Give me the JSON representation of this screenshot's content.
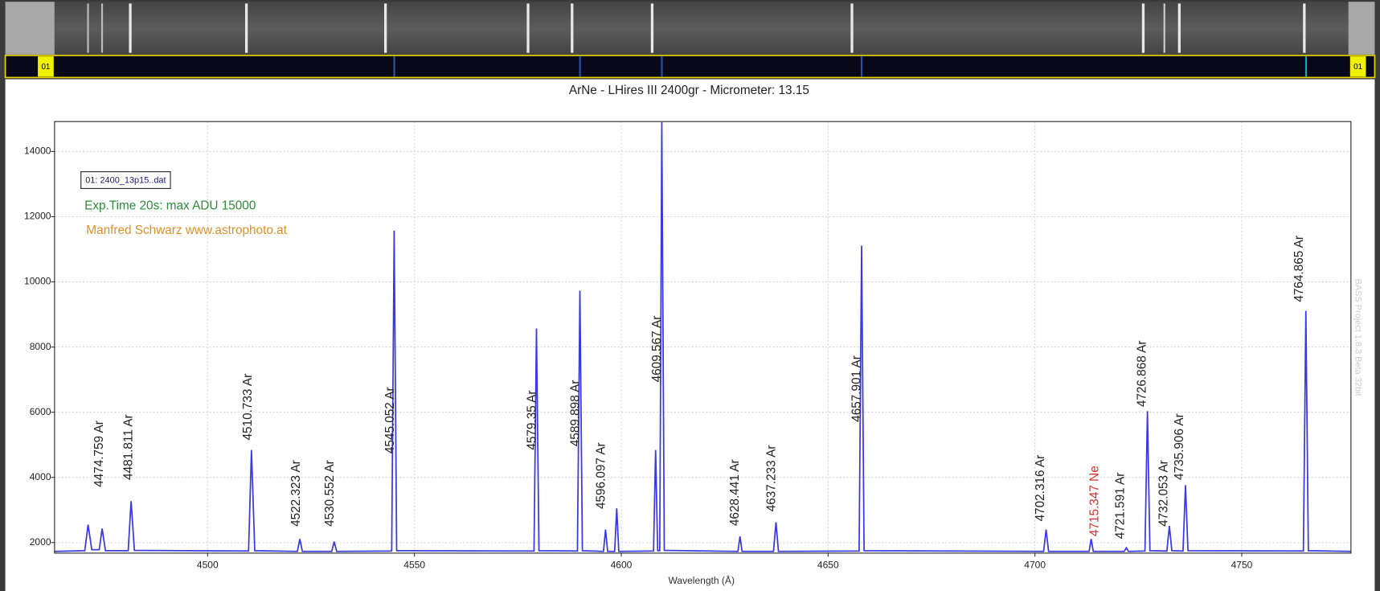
{
  "chart_data": {
    "type": "line",
    "title": "ArNe - LHires III 2400gr - Micrometer: 13.15",
    "x_label": "Wavelength (Å)",
    "xlim": [
      4463,
      4776.4
    ],
    "ylim": [
      1676,
      14920
    ],
    "xticks": [
      4500,
      4550,
      4600,
      4650,
      4700,
      4750
    ],
    "yticks": [
      2000,
      4000,
      6000,
      8000,
      10000,
      12000,
      14000
    ],
    "grid": true,
    "legend": "top-left",
    "x": [
      4463,
      4470.3,
      4471.1,
      4472.0,
      4473.8,
      4474.5,
      4475.3,
      4480.8,
      4481.5,
      4482.3,
      4509.9,
      4510.6,
      4511.4,
      4521.7,
      4522.3,
      4522.9,
      4530.0,
      4530.6,
      4531.2,
      4544.5,
      4545.1,
      4545.7,
      4578.9,
      4579.5,
      4580.1,
      4589.4,
      4590.0,
      4590.6,
      4595.7,
      4596.2,
      4596.7,
      4598.4,
      4598.9,
      4599.4,
      4607.8,
      4608.3,
      4608.8,
      4609.3,
      4609.8,
      4610.4,
      4628.2,
      4628.7,
      4629.2,
      4636.8,
      4637.4,
      4638.0,
      4657.5,
      4658.1,
      4658.7,
      4702.1,
      4702.7,
      4703.3,
      4713.1,
      4713.6,
      4714.1,
      4721.6,
      4722.1,
      4722.6,
      4726.6,
      4727.2,
      4727.8,
      4731.9,
      4732.5,
      4733.1,
      4735.8,
      4736.4,
      4737.0,
      4764.9,
      4765.5,
      4766.1,
      4776.4
    ],
    "series": [
      {
        "name": "01: 2400_13p15..dat",
        "color": "#3a3ae0",
        "values": [
          1730,
          1750,
          2550,
          1780,
          1780,
          2430,
          1750,
          1750,
          3270,
          1760,
          1740,
          4840,
          1750,
          1730,
          2110,
          1730,
          1730,
          2030,
          1730,
          1740,
          11570,
          1750,
          1740,
          8570,
          1750,
          1740,
          9730,
          1750,
          1730,
          2400,
          1730,
          1730,
          3050,
          1730,
          1740,
          4840,
          1750,
          1750,
          14900,
          1760,
          1730,
          2190,
          1730,
          1730,
          2620,
          1730,
          1740,
          11110,
          1750,
          1730,
          2400,
          1730,
          1730,
          2110,
          1730,
          1730,
          1840,
          1730,
          1740,
          6030,
          1750,
          1740,
          2510,
          1750,
          1740,
          3760,
          1750,
          1740,
          9110,
          1750,
          1730
        ]
      }
    ],
    "annotations": [
      {
        "text": "4474.759 Ar",
        "x": 4474.759,
        "y": 3700
      },
      {
        "text": "4481.811 Ar",
        "x": 4481.811,
        "y": 3920
      },
      {
        "text": "4510.733 Ar",
        "x": 4510.733,
        "y": 5140
      },
      {
        "text": "4522.323 Ar",
        "x": 4522.323,
        "y": 2490
      },
      {
        "text": "4530.552 Ar",
        "x": 4530.552,
        "y": 2490
      },
      {
        "text": "4545.052 Ar",
        "x": 4545.052,
        "y": 4730
      },
      {
        "text": "4579.35 Ar",
        "x": 4579.35,
        "y": 4840
      },
      {
        "text": "4589.898 Ar",
        "x": 4589.898,
        "y": 4950
      },
      {
        "text": "4596.097 Ar",
        "x": 4596.097,
        "y": 3030
      },
      {
        "text": "4609.567 Ar",
        "x": 4609.567,
        "y": 6920
      },
      {
        "text": "4628.441 Ar",
        "x": 4628.441,
        "y": 2510
      },
      {
        "text": "4637.233 Ar",
        "x": 4637.233,
        "y": 2950
      },
      {
        "text": "4657.901 Ar",
        "x": 4657.901,
        "y": 5700
      },
      {
        "text": "4702.316 Ar",
        "x": 4702.316,
        "y": 2650
      },
      {
        "text": "4715.347 Ne",
        "x": 4715.347,
        "y": 2190,
        "color": "#d0312d"
      },
      {
        "text": "4721.591 Ar",
        "x": 4721.591,
        "y": 2110
      },
      {
        "text": "4726.868 Ar",
        "x": 4726.868,
        "y": 6160
      },
      {
        "text": "4732.053 Ar",
        "x": 4732.053,
        "y": 2490
      },
      {
        "text": "4735.906 Ar",
        "x": 4735.906,
        "y": 3920
      },
      {
        "text": "4764.865 Ar",
        "x": 4764.865,
        "y": 9380
      }
    ],
    "notes": [
      {
        "text": "Exp.Time 20s: max ADU 15000",
        "color": "#2e8b3a"
      },
      {
        "text": "Manfred Schwarz www.astrophoto.at",
        "color": "#e0902a"
      }
    ],
    "watermark": "BASS Project 1.8.3 Beta 32bit",
    "strip_label": "01"
  }
}
